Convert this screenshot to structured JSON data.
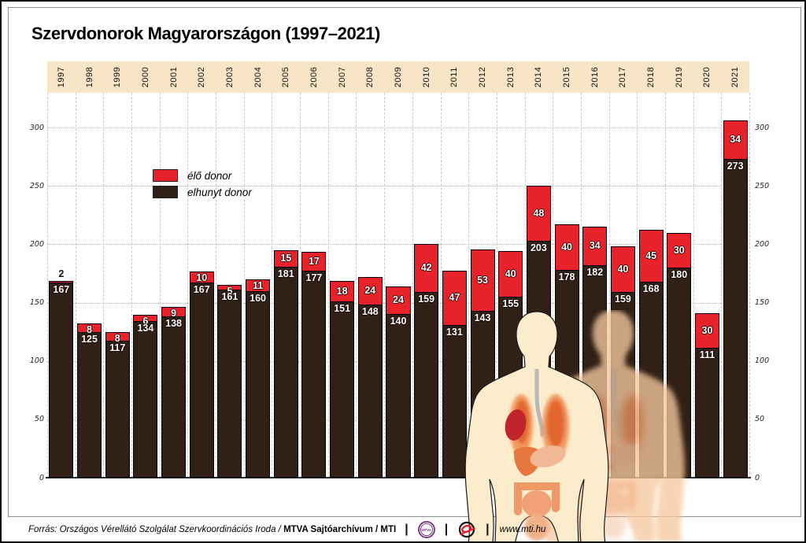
{
  "title": "Szervdonorok Magyarországon (1997–2021)",
  "legend": {
    "living_label": "élő donor",
    "deceased_label": "elhunyt donor"
  },
  "footer": {
    "source_italic": "Forrás: Országos Vérellátó Szolgálat Szervkoordinációs Iroda / ",
    "source_bold": "MTVA Sajtóarchívum / MTI",
    "separator": "|",
    "mtva_logo_text": "MTVA",
    "url": "www.mti.hu"
  },
  "colors": {
    "living": "#e8222b",
    "deceased": "#312016",
    "year_band": "#f7e5c5",
    "mtva_purple": "#70267d",
    "mti_red": "#e31e24"
  },
  "chart_data": {
    "type": "bar",
    "stacked": true,
    "title": "Szervdonorok Magyarországon (1997–2021)",
    "categories": [
      "1997",
      "1998",
      "1999",
      "2000",
      "2001",
      "2002",
      "2003",
      "2004",
      "2005",
      "2006",
      "2007",
      "2008",
      "2009",
      "2010",
      "2011",
      "2012",
      "2013",
      "2014",
      "2015",
      "2016",
      "2017",
      "2018",
      "2019",
      "2020",
      "2021"
    ],
    "series": [
      {
        "name": "élő donor",
        "color": "#e8222b",
        "values": [
          2,
          8,
          8,
          6,
          9,
          10,
          5,
          11,
          15,
          17,
          18,
          24,
          24,
          42,
          47,
          53,
          40,
          48,
          40,
          34,
          40,
          45,
          30,
          30,
          34
        ]
      },
      {
        "name": "elhunyt donor",
        "color": "#312016",
        "values": [
          167,
          125,
          117,
          134,
          138,
          167,
          161,
          160,
          181,
          177,
          151,
          148,
          140,
          159,
          131,
          143,
          155,
          203,
          178,
          182,
          159,
          168,
          180,
          111,
          273
        ]
      }
    ],
    "ylim": [
      0,
      300
    ],
    "yticks": [
      0,
      50,
      100,
      150,
      200,
      250,
      300
    ],
    "grid": true,
    "legend_position": "upper-left-inside"
  }
}
